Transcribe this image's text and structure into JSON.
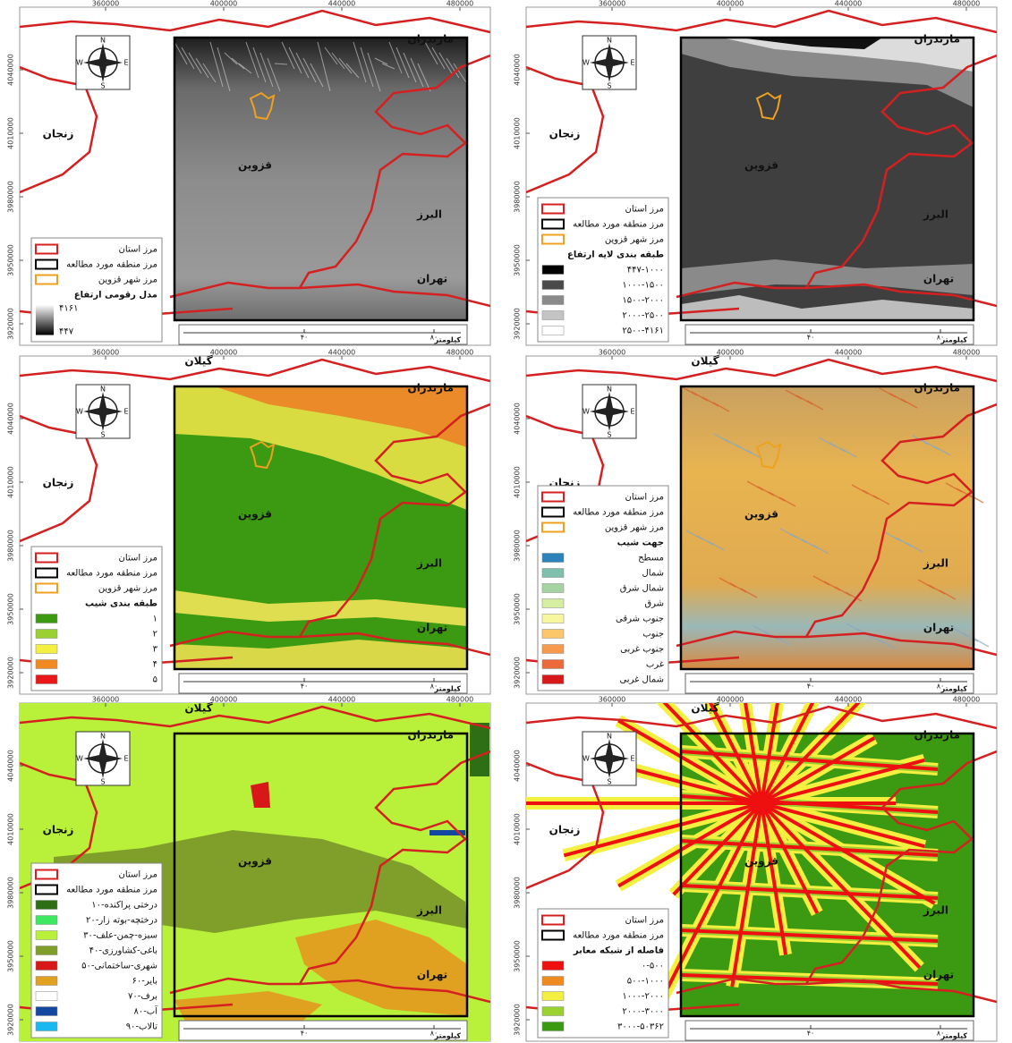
{
  "axes": {
    "xticks": [
      360000,
      400000,
      440000,
      480000
    ],
    "yticks": [
      4040000,
      4010000,
      3980000,
      3950000,
      3920000
    ]
  },
  "compass": {
    "n": "N",
    "s": "S",
    "e": "E",
    "w": "W"
  },
  "scale": {
    "labels": [
      "۴۰",
      "۸۰"
    ],
    "unit": "کیلومتر"
  },
  "panels": [
    {
      "regions": [
        "مازندران",
        "زنجان",
        "قزوین",
        "البرز",
        "تهران"
      ],
      "legend": {
        "boundaries": [
          {
            "label": "مرز استان",
            "color": "#d42020"
          },
          {
            "label": "مرز منطقه مورد مطالعه",
            "color": "#000000"
          },
          {
            "label": "مرز شهر قزوین",
            "color": "#f0a020"
          }
        ],
        "title": "مدل رقومی ارتفاع",
        "gradient": {
          "max": "۴۱۶۱",
          "min": "۴۴۷"
        }
      }
    },
    {
      "regions": [
        "مازندران",
        "زنجان",
        "قزوین",
        "البرز",
        "تهران"
      ],
      "legend": {
        "boundaries": [
          {
            "label": "مرز استان",
            "color": "#d42020"
          },
          {
            "label": "مرز منطقه مورد مطالعه",
            "color": "#000000"
          },
          {
            "label": "مرز شهر قزوین",
            "color": "#f0a020"
          }
        ],
        "title": "طبقه بندی لایه ارتفاع",
        "items": [
          {
            "label": "۴۴۷-۱۰۰۰",
            "color": "#000000"
          },
          {
            "label": "۱۰۰۰-۱۵۰۰",
            "color": "#4a4a4a"
          },
          {
            "label": "۱۵۰۰-۲۰۰۰",
            "color": "#8a8a8a"
          },
          {
            "label": "۲۰۰۰-۲۵۰۰",
            "color": "#c4c4c4"
          },
          {
            "label": "۲۵۰۰-۴۱۶۱",
            "color": "#ffffff"
          }
        ]
      }
    },
    {
      "regions": [
        "مازندران",
        "زنجان",
        "قزوین",
        "البرز",
        "تهران",
        "گیلان"
      ],
      "legend": {
        "boundaries": [
          {
            "label": "مرز استان",
            "color": "#d42020"
          },
          {
            "label": "مرز منطقه مورد مطالعه",
            "color": "#000000"
          },
          {
            "label": "مرز شهر قزوین",
            "color": "#f0a020"
          }
        ],
        "title": "طبقه بندی شیب",
        "items": [
          {
            "label": "۱",
            "color": "#3c9a12"
          },
          {
            "label": "۲",
            "color": "#9ad030"
          },
          {
            "label": "۳",
            "color": "#f4f040"
          },
          {
            "label": "۴",
            "color": "#f08a20"
          },
          {
            "label": "۵",
            "color": "#e81818"
          }
        ]
      }
    },
    {
      "regions": [
        "مازندران",
        "زنجان",
        "قزوین",
        "البرز",
        "تهران",
        "گیلان"
      ],
      "legend": {
        "boundaries": [
          {
            "label": "مرز استان",
            "color": "#d42020"
          },
          {
            "label": "مرز منطقه مورد مطالعه",
            "color": "#000000"
          },
          {
            "label": "مرز شهر قزوین",
            "color": "#f0a020"
          }
        ],
        "title": "جهت شیب",
        "items": [
          {
            "label": "مسطح",
            "color": "#2b83ba"
          },
          {
            "label": "شمال",
            "color": "#80bfac"
          },
          {
            "label": "شمال شرق",
            "color": "#a5d4a2"
          },
          {
            "label": "شرق",
            "color": "#d6ee9f"
          },
          {
            "label": "جنوب شرقی",
            "color": "#f7f7a0"
          },
          {
            "label": "جنوب",
            "color": "#fcc76b"
          },
          {
            "label": "جنوب غربی",
            "color": "#f89a4e"
          },
          {
            "label": "غرب",
            "color": "#ec6a3a"
          },
          {
            "label": "شمال غربی",
            "color": "#d7191c"
          }
        ]
      }
    },
    {
      "regions": [
        "مازندران",
        "زنجان",
        "قزوین",
        "البرز",
        "تهران",
        "گیلان"
      ],
      "legend": {
        "boundaries": [
          {
            "label": "مرز استان",
            "color": "#d42020"
          },
          {
            "label": "مرز منطقه مورد مطالعه",
            "color": "#000000"
          }
        ],
        "items": [
          {
            "label": "درختی پراکنده-۱۰",
            "color": "#2e6e14"
          },
          {
            "label": "درختچه-بوته زار-۲۰",
            "color": "#3ee860"
          },
          {
            "label": "سبزه-چمن-علف-۳۰",
            "color": "#b8f03a"
          },
          {
            "label": "باغی-کشاورزی-۴۰",
            "color": "#7f9e2a"
          },
          {
            "label": "شهری-ساختمانی-۵۰",
            "color": "#d81818"
          },
          {
            "label": "بایر-۶۰",
            "color": "#e0a020"
          },
          {
            "label": "برف-۷۰",
            "color": "#ffffff"
          },
          {
            "label": "آب-۸۰",
            "color": "#1448a0"
          },
          {
            "label": "تالاب-۹۰",
            "color": "#1ab8f0"
          }
        ]
      }
    },
    {
      "regions": [
        "مازندران",
        "زنجان",
        "قزوین",
        "البرز",
        "تهران",
        "گیلان"
      ],
      "legend": {
        "boundaries": [
          {
            "label": "مرز استان",
            "color": "#d42020"
          },
          {
            "label": "مرز منطقه مورد مطالعه",
            "color": "#000000"
          }
        ],
        "title": "فاصله از شبکه معابر",
        "items": [
          {
            "label": "۰-۵۰۰",
            "color": "#ee1010"
          },
          {
            "label": "۵۰۰-۱۰۰۰",
            "color": "#f08a20"
          },
          {
            "label": "۱۰۰۰-۲۰۰۰",
            "color": "#f4f040"
          },
          {
            "label": "۲۰۰۰-۳۰۰۰",
            "color": "#9ad030"
          },
          {
            "label": "۳۰۰۰-۵۰۳۶۲",
            "color": "#3c9a12"
          }
        ]
      }
    }
  ]
}
